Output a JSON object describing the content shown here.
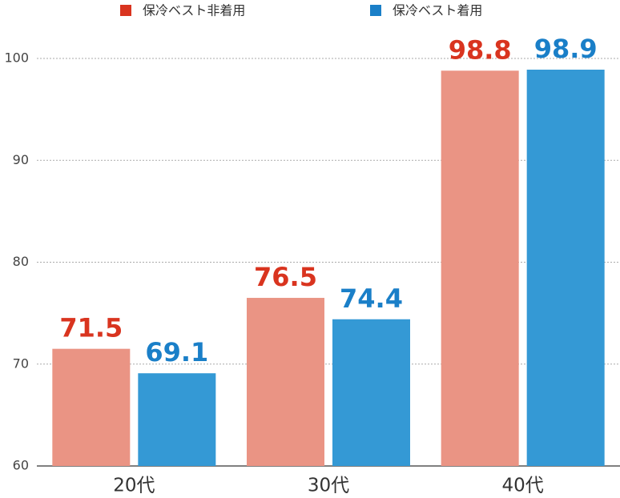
{
  "chart_data": {
    "type": "bar",
    "categories": [
      "20代",
      "30代",
      "40代"
    ],
    "series": [
      {
        "name": "保冷ベスト非着用",
        "color": "#ea9484",
        "label_color": "#d9341f",
        "values": [
          71.5,
          76.5,
          98.8
        ]
      },
      {
        "name": "保冷ベスト着用",
        "color": "#3499d5",
        "label_color": "#1a7fc8",
        "values": [
          69.1,
          74.4,
          98.9
        ]
      }
    ],
    "ylim": [
      60,
      100
    ],
    "yticks": [
      60,
      70,
      80,
      90,
      100
    ],
    "grid": true
  }
}
